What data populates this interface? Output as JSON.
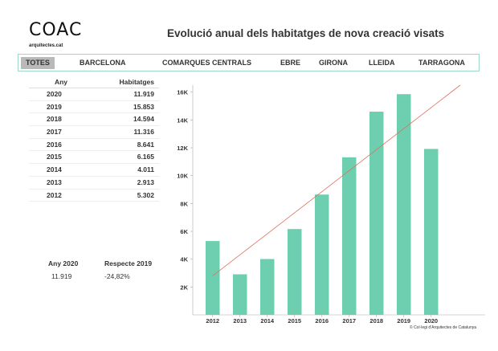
{
  "header": {
    "logo_text": "COAC",
    "logo_sub": "arquitectes.cat",
    "title": "Evolució anual dels habitatges de nova creació visats"
  },
  "tabs": [
    {
      "label": "TOTES",
      "active": true
    },
    {
      "label": "BARCELONA",
      "active": false
    },
    {
      "label": "COMARQUES CENTRALS",
      "active": false
    },
    {
      "label": "EBRE",
      "active": false
    },
    {
      "label": "GIRONA",
      "active": false
    },
    {
      "label": "LLEIDA",
      "active": false
    },
    {
      "label": "TARRAGONA",
      "active": false
    }
  ],
  "table": {
    "headers": [
      "Any",
      "Habitatges"
    ],
    "rows": [
      [
        "2020",
        "11.919"
      ],
      [
        "2019",
        "15.853"
      ],
      [
        "2018",
        "14.594"
      ],
      [
        "2017",
        "11.316"
      ],
      [
        "2016",
        "8.641"
      ],
      [
        "2015",
        "6.165"
      ],
      [
        "2014",
        "4.011"
      ],
      [
        "2013",
        "2.913"
      ],
      [
        "2012",
        "5.302"
      ]
    ]
  },
  "summary": {
    "label_year": "Any 2020",
    "label_compare": "Respecte 2019",
    "value": "11.919",
    "change": "-24,82%"
  },
  "credit": "© Col·legi d'Arquitectes de Catalunya",
  "colors": {
    "bar": "#6dcfb0",
    "trend": "#e0705a",
    "tab_border": "#9ed9c6",
    "active_tab": "#b9b9b9"
  },
  "chart_data": {
    "type": "bar",
    "categories": [
      "2012",
      "2013",
      "2014",
      "2015",
      "2016",
      "2017",
      "2018",
      "2019",
      "2020"
    ],
    "values": [
      5302,
      2913,
      4011,
      6165,
      8641,
      11316,
      14594,
      15853,
      11919
    ],
    "yticks": [
      "2K",
      "4K",
      "6K",
      "8K",
      "10K",
      "12K",
      "14K",
      "16K"
    ],
    "ylim": [
      0,
      16500
    ],
    "trendline": {
      "start": 2800,
      "end": 16500
    },
    "grid": false
  }
}
